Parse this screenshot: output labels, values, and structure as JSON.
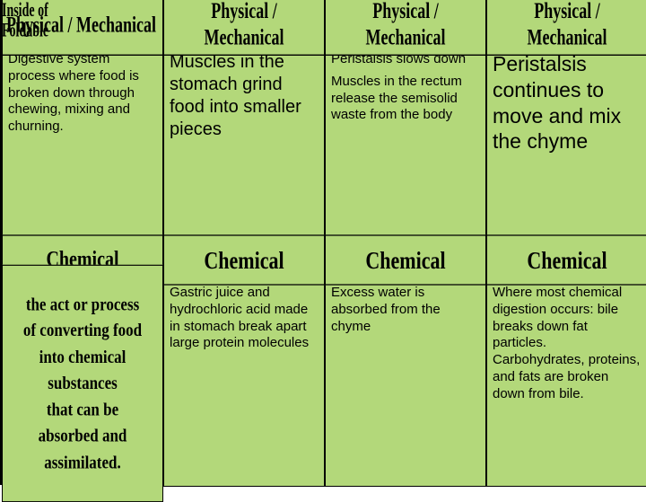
{
  "corner_label": "Inside of\nFoldable",
  "headers_top": [
    "Physical / Mechanical",
    "Physical / Mechanical",
    "Physical / Mechanical",
    "Physical / Mechanical"
  ],
  "headers_mid": [
    "Chemical",
    "Chemical",
    "Chemical",
    "Chemical"
  ],
  "row1": {
    "c1": "Digestive system process where food is broken down through chewing, mixing and churning.",
    "c2": "Muscles in the stomach grind food into smaller pieces",
    "c3a": "Peristalsis slows down",
    "c3b": "Muscles in the rectum release the semisolid waste from the body",
    "c4": "Peristalsis continues to move and mix the chyme"
  },
  "row2": {
    "c1": "the act or process\nof converting food\ninto chemical substances\nthat can be\nabsorbed and assimilated.",
    "c2": "Gastric juice and hydrochloric acid made in stomach break apart large protein molecules",
    "c3": "Excess water is absorbed from the chyme",
    "c4": "Where most chemical digestion occurs: bile breaks down fat particles. Carbohydrates, proteins, and fats are broken down from bile."
  },
  "colors": {
    "cell_bg": "#b3d87a",
    "border": "#000000"
  }
}
